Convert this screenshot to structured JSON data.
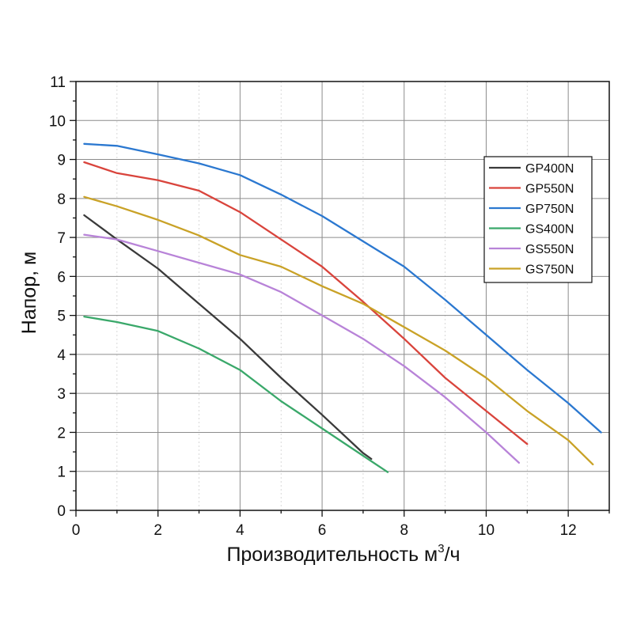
{
  "chart_data": {
    "type": "line",
    "title": "",
    "xlabel_main": "Производительность м",
    "xlabel_sup": "3",
    "xlabel_end": "/ч",
    "ylabel": "Напор, м",
    "xlim": [
      0,
      13
    ],
    "ylim": [
      0,
      11
    ],
    "xticks": [
      "0",
      "2",
      "4",
      "6",
      "8",
      "10",
      "12"
    ],
    "yticks": [
      "0",
      "1",
      "2",
      "3",
      "4",
      "5",
      "6",
      "7",
      "8",
      "9",
      "10",
      "11"
    ],
    "grid": true,
    "legend_position": "top-right",
    "series": [
      {
        "name": "GP400N",
        "color": "#3a3a3a",
        "x": [
          0.2,
          1,
          2,
          3,
          4,
          5,
          6,
          7,
          7.2
        ],
        "y": [
          7.57,
          6.95,
          6.2,
          5.3,
          4.4,
          3.4,
          2.45,
          1.47,
          1.32
        ]
      },
      {
        "name": "GP550N",
        "color": "#d9443c",
        "x": [
          0.2,
          1,
          2,
          3,
          4,
          5,
          6,
          7,
          8,
          9,
          10,
          11
        ],
        "y": [
          8.93,
          8.65,
          8.47,
          8.2,
          7.65,
          6.95,
          6.25,
          5.35,
          4.4,
          3.4,
          2.55,
          1.7
        ]
      },
      {
        "name": "GP750N",
        "color": "#2b78d0",
        "x": [
          0.2,
          1,
          2,
          3,
          4,
          5,
          6,
          7,
          8,
          9,
          10,
          11,
          12,
          12.8
        ],
        "y": [
          9.4,
          9.35,
          9.13,
          8.9,
          8.6,
          8.1,
          7.55,
          6.9,
          6.25,
          5.4,
          4.5,
          3.6,
          2.75,
          2.0
        ]
      },
      {
        "name": "GS400N",
        "color": "#3aa86a",
        "x": [
          0.2,
          1,
          2,
          3,
          4,
          5,
          6,
          7,
          7.6
        ],
        "y": [
          4.97,
          4.83,
          4.6,
          4.15,
          3.6,
          2.8,
          2.1,
          1.4,
          0.98
        ]
      },
      {
        "name": "GS550N",
        "color": "#b883d8",
        "x": [
          0.2,
          1,
          2,
          3,
          4,
          5,
          6,
          7,
          8,
          9,
          10,
          10.8
        ],
        "y": [
          7.07,
          6.95,
          6.65,
          6.35,
          6.05,
          5.6,
          5.0,
          4.4,
          3.7,
          2.9,
          2.0,
          1.22
        ]
      },
      {
        "name": "GS750N",
        "color": "#c9a227",
        "x": [
          0.2,
          1,
          2,
          3,
          4,
          5,
          6,
          7,
          8,
          9,
          10,
          11,
          12,
          12.6
        ],
        "y": [
          8.04,
          7.8,
          7.45,
          7.05,
          6.55,
          6.25,
          5.75,
          5.3,
          4.7,
          4.1,
          3.4,
          2.55,
          1.8,
          1.18
        ]
      }
    ]
  }
}
